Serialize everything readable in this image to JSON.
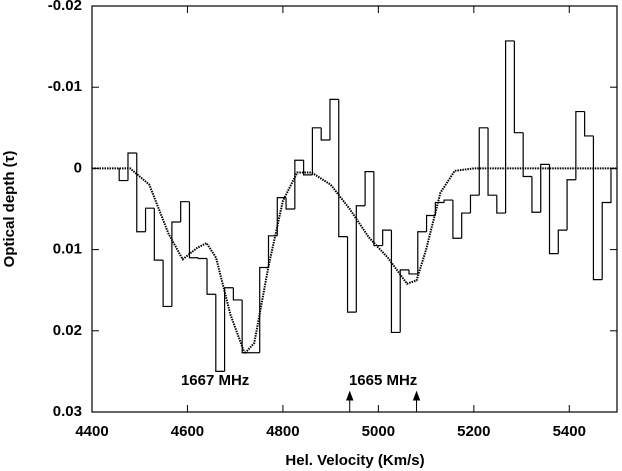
{
  "chart_data": {
    "type": "histogram",
    "xlabel": "Hel. Velocity (Km/s)",
    "ylabel": "Optical depth (τ)",
    "xlim": [
      4400,
      5500
    ],
    "xticks": [
      4400,
      4600,
      4800,
      5000,
      5200,
      5400
    ],
    "ylim": [
      -0.02,
      0.03
    ],
    "yticks": [
      -0.02,
      -0.01,
      0,
      0.01,
      0.02,
      0.03
    ],
    "y_inverted": true,
    "color": "#000000",
    "bins": [
      4457,
      4475.4,
      4493.8,
      4512.2,
      4530.6,
      4549,
      4567.4,
      4585.8,
      4604.2,
      4622.6,
      4641,
      4659.4,
      4677.8,
      4696.2,
      4714.6,
      4733,
      4751.4,
      4769.8,
      4788.2,
      4806.6,
      4825,
      4843.4,
      4861.8,
      4880.2,
      4898.6,
      4917,
      4935.4,
      4953.8,
      4972.2,
      4990.6,
      5009,
      5027.4,
      5045.8,
      5064.2,
      5082.6,
      5101,
      5119.4,
      5137.8,
      5156.2,
      5174.6,
      5193,
      5211.4,
      5229.8,
      5248.2,
      5266.6,
      5285,
      5303.4,
      5321.8,
      5340.2,
      5358.6,
      5377,
      5395.4,
      5413.8,
      5432.2,
      5450.6,
      5469,
      5487.4
    ],
    "values": [
      0.0015,
      -0.0019,
      0.0078,
      0.0049,
      0.0113,
      0.017,
      0.0066,
      0.0041,
      0.011,
      0.0111,
      0.0155,
      0.025,
      0.0147,
      0.0162,
      0.0227,
      0.0227,
      0.0122,
      0.0083,
      0.0036,
      0.005,
      -0.001,
      0.0008,
      -0.005,
      -0.0035,
      -0.0085,
      0.0084,
      0.0177,
      0.0046,
      0.0004,
      0.0095,
      0.0076,
      0.0202,
      0.0125,
      0.013,
      0.0078,
      0.0058,
      0.0042,
      0.0039,
      0.0086,
      0.0055,
      0.0033,
      -0.005,
      0.0033,
      0.0055,
      -0.0157,
      -0.0044,
      0.001,
      0.0054,
      -0.0005,
      0.0105,
      0.0076,
      0.0014,
      -0.007,
      -0.004,
      0.0137,
      0.0042
    ],
    "fit": {
      "x": [
        4400,
        4480,
        4520,
        4560,
        4590,
        4620,
        4640,
        4660,
        4690,
        4720,
        4740,
        4770,
        4800,
        4830,
        4860,
        4900,
        4940,
        4980,
        5020,
        5060,
        5080,
        5100,
        5130,
        5160,
        5200,
        5500
      ],
      "values": [
        0,
        0,
        0.002,
        0.008,
        0.0112,
        0.0098,
        0.0092,
        0.011,
        0.018,
        0.0228,
        0.0215,
        0.012,
        0.004,
        0.0005,
        0.0005,
        0.002,
        0.005,
        0.0085,
        0.011,
        0.0142,
        0.0138,
        0.01,
        0.003,
        0.0003,
        0,
        0
      ]
    },
    "annotations": [
      {
        "text": "1667 MHz",
        "x": 4658
      },
      {
        "text": "1665 MHz",
        "x": 5010
      }
    ],
    "arrows": [
      4940,
      5080
    ]
  }
}
